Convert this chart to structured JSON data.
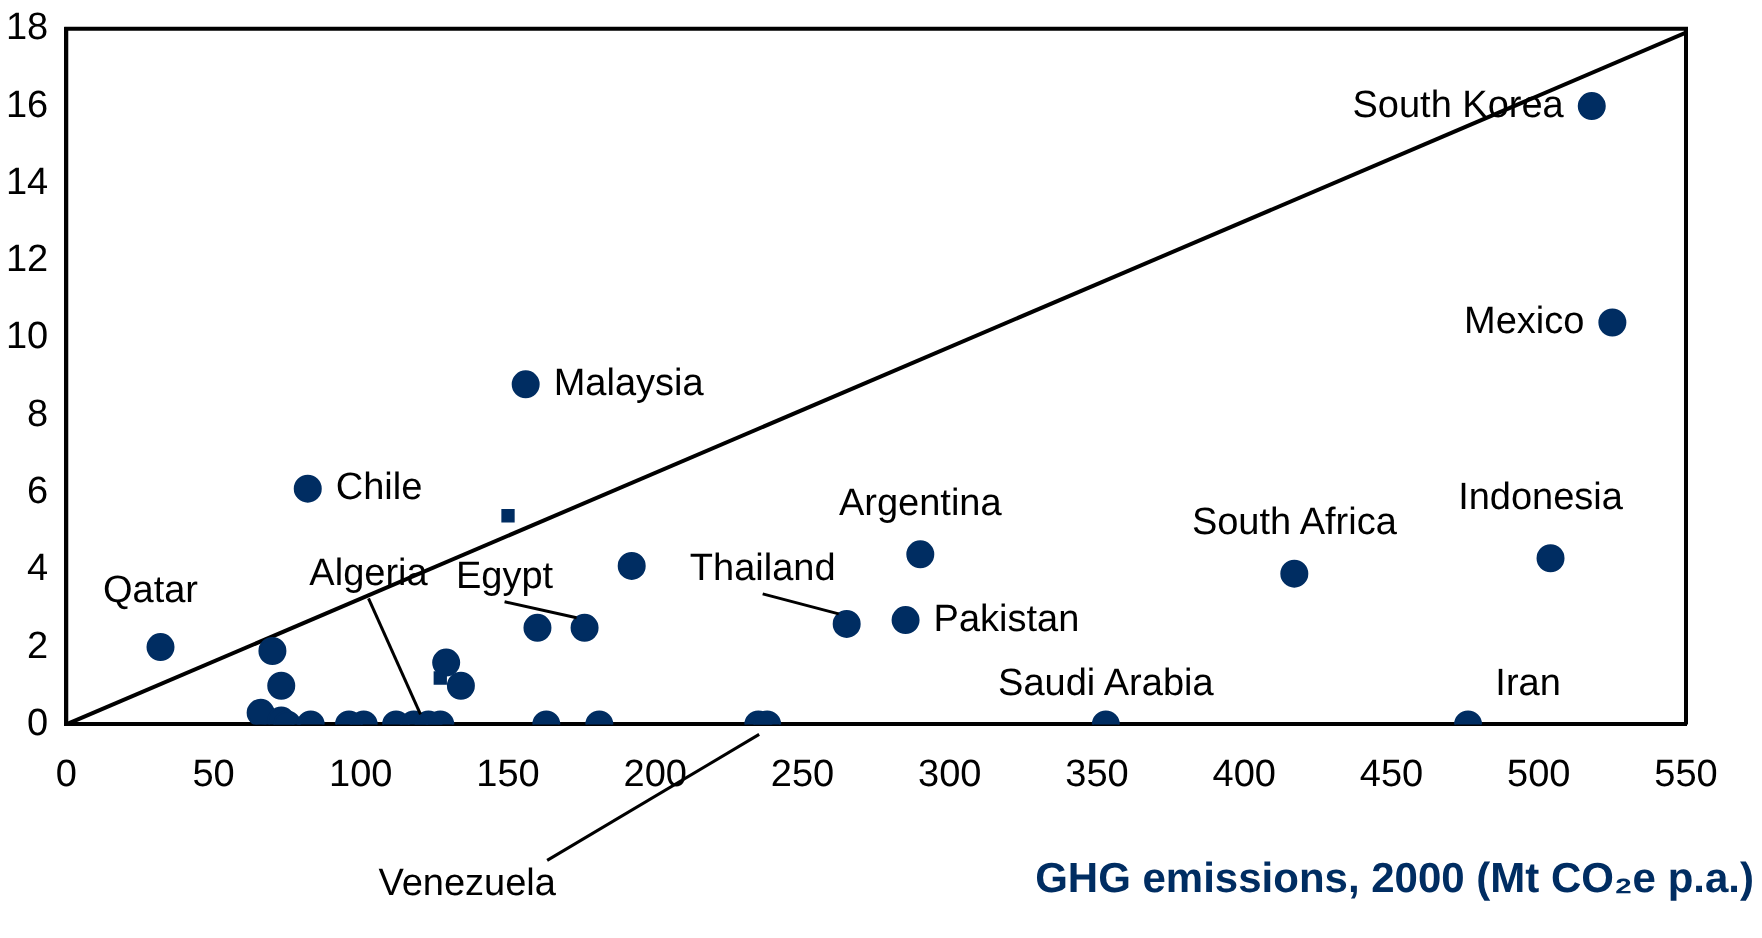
{
  "chart_data": {
    "type": "scatter",
    "xlabel": "GHG emissions, 2000 (Mt CO₂e p.a.)",
    "xlim": [
      0,
      550
    ],
    "xticks": [
      0,
      50,
      100,
      150,
      200,
      250,
      300,
      350,
      400,
      450,
      500,
      550
    ],
    "ylim": [
      0,
      18
    ],
    "yticks": [
      0,
      2,
      4,
      6,
      8,
      10,
      12,
      14,
      16,
      18
    ],
    "grid": false,
    "legend": false,
    "series": [
      {
        "color": "#002d62",
        "marker": "circle",
        "x": [
          518,
          525,
          156,
          82,
          32,
          66,
          70,
          73,
          73,
          75,
          83,
          96,
          101,
          112,
          118,
          123,
          127,
          129,
          134,
          160,
          176,
          192,
          163,
          181,
          235,
          238,
          265,
          290,
          285,
          417,
          504,
          353,
          476
        ],
        "values": [
          16,
          10.4,
          8.8,
          6.1,
          2,
          0.3,
          1.9,
          1,
          0.1,
          0,
          0,
          0,
          0,
          0,
          0,
          0,
          0,
          1.6,
          1,
          2.5,
          2.5,
          4.1,
          0,
          0,
          0,
          0,
          2.6,
          4.4,
          2.7,
          3.9,
          4.3,
          0,
          0
        ]
      },
      {
        "color": "#002d62",
        "marker": "square",
        "x": [
          150,
          127
        ],
        "values": [
          5.4,
          1.2
        ]
      },
      {
        "type": "line",
        "color": "#000000",
        "marker": "none",
        "x": [
          0,
          550
        ],
        "values": [
          0,
          17.9
        ]
      }
    ],
    "annotations": [
      {
        "text": "South Korea",
        "x": 518,
        "y": 16
      },
      {
        "text": "Mexico",
        "x": 525,
        "y": 10.4
      },
      {
        "text": "Malaysia",
        "x": 156,
        "y": 8.8
      },
      {
        "text": "Chile",
        "x": 82,
        "y": 6.1
      },
      {
        "text": "Qatar",
        "x": 32,
        "y": 2
      },
      {
        "text": "Algeria",
        "x": 123,
        "y": 0
      },
      {
        "text": "Egypt",
        "x": 176,
        "y": 2.5
      },
      {
        "text": "Thailand",
        "x": 265,
        "y": 2.6
      },
      {
        "text": "Argentina",
        "x": 290,
        "y": 4.4
      },
      {
        "text": "Pakistan",
        "x": 285,
        "y": 2.7
      },
      {
        "text": "South Africa",
        "x": 417,
        "y": 3.9
      },
      {
        "text": "Indonesia",
        "x": 504,
        "y": 4.3
      },
      {
        "text": "Saudi Arabia",
        "x": 353,
        "y": 0
      },
      {
        "text": "Iran",
        "x": 476,
        "y": 0
      },
      {
        "text": "Venezuela",
        "x": 238,
        "y": 0
      }
    ]
  }
}
